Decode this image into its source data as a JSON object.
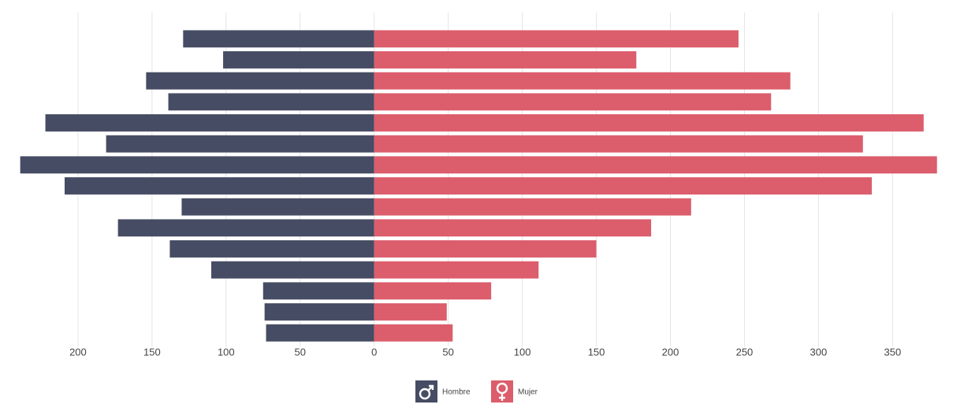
{
  "chart_data": {
    "type": "pyramid",
    "series": [
      {
        "name": "Hombre",
        "color": "#464c63",
        "side": "left",
        "values": [
          129,
          102,
          154,
          139,
          222,
          181,
          239,
          209,
          130,
          173,
          138,
          110,
          75,
          74,
          73
        ]
      },
      {
        "name": "Mujer",
        "color": "#dc5d6c",
        "side": "right",
        "values": [
          246,
          177,
          281,
          268,
          371,
          330,
          380,
          336,
          214,
          187,
          150,
          111,
          79,
          49,
          53
        ]
      }
    ],
    "xlim": [
      -242,
      386
    ],
    "xticks": [
      {
        "value": -200,
        "label": "200"
      },
      {
        "value": -150,
        "label": "150"
      },
      {
        "value": -100,
        "label": "100"
      },
      {
        "value": -50,
        "label": "50"
      },
      0,
      50,
      100,
      150,
      200,
      250,
      300,
      350
    ],
    "grid": true
  }
}
